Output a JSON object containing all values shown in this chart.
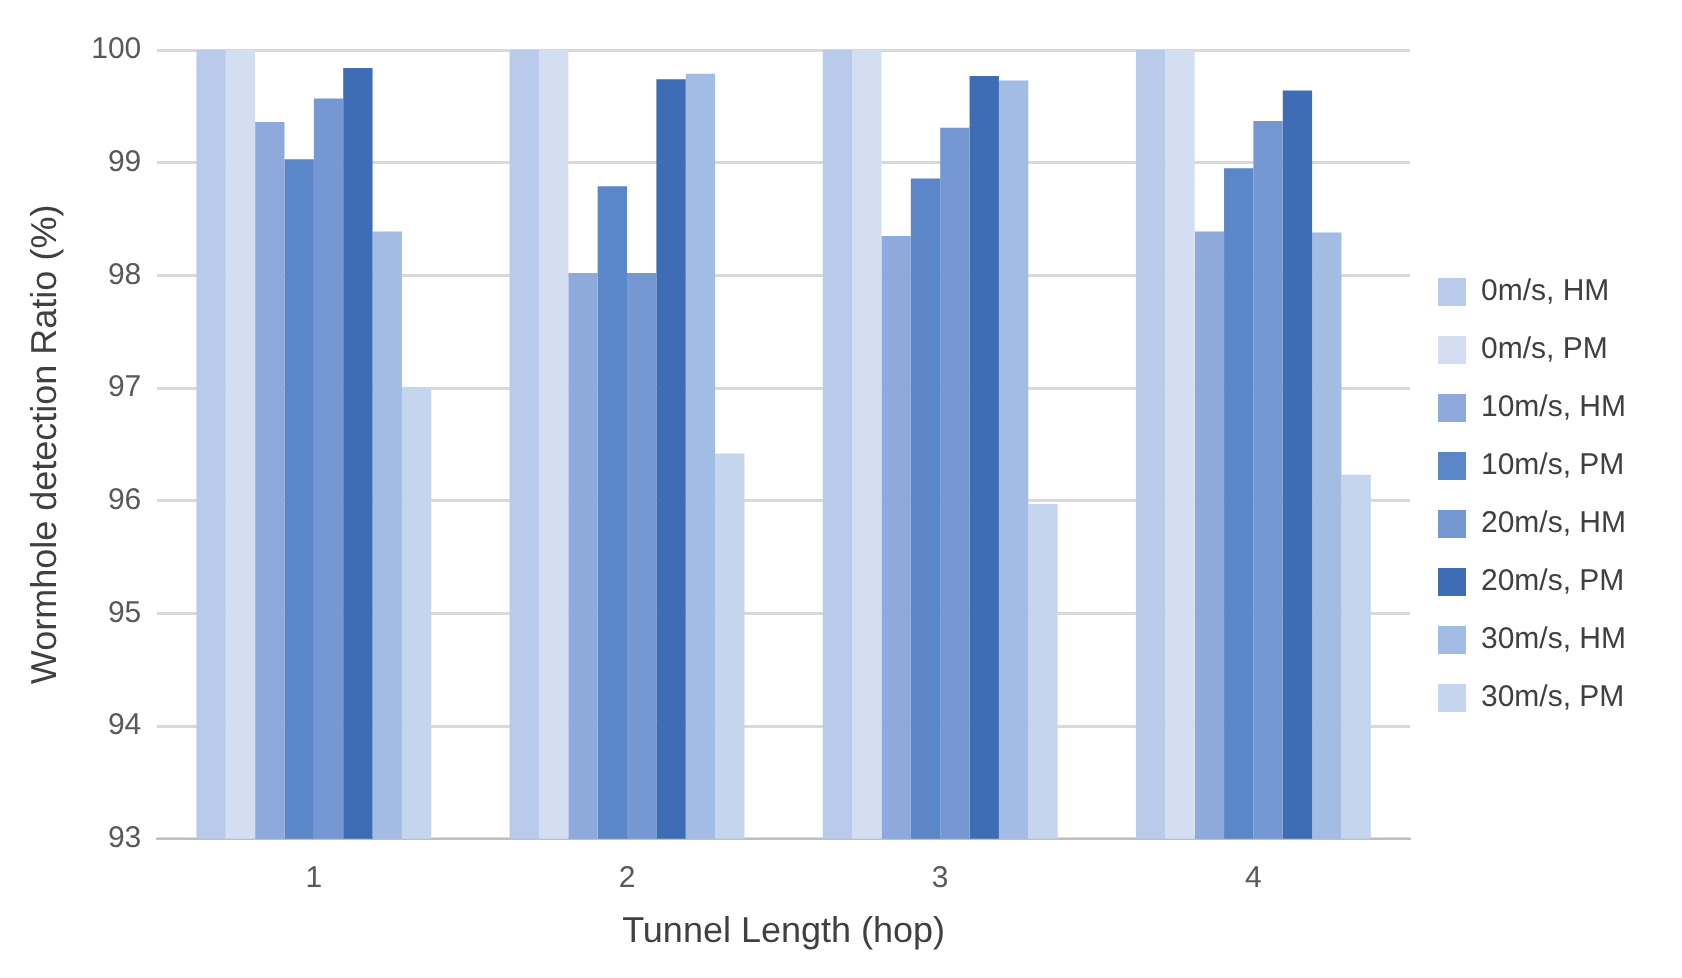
{
  "chart_data": {
    "type": "bar",
    "xlabel": "Tunnel Length (hop)",
    "ylabel": "Wormhole detection Ratio (%)",
    "categories": [
      "1",
      "2",
      "3",
      "4"
    ],
    "series": [
      {
        "name": "0m/s, HM",
        "color": "#b9cbea",
        "values": [
          100,
          100,
          100,
          100
        ]
      },
      {
        "name": "0m/s, PM",
        "color": "#d3def2",
        "values": [
          100,
          100,
          100,
          100
        ]
      },
      {
        "name": "10m/s, HM",
        "color": "#8eaadc",
        "values": [
          99.36,
          98.02,
          98.35,
          98.39
        ]
      },
      {
        "name": "10m/s, PM",
        "color": "#5b86c8",
        "values": [
          99.03,
          98.79,
          98.86,
          98.95
        ]
      },
      {
        "name": "20m/s, HM",
        "color": "#7598d2",
        "values": [
          99.57,
          98.02,
          99.31,
          99.37
        ]
      },
      {
        "name": "20m/s, PM",
        "color": "#3f6db5",
        "values": [
          99.84,
          99.74,
          99.77,
          99.64
        ]
      },
      {
        "name": "30m/s, HM",
        "color": "#a3bce4",
        "values": [
          98.39,
          99.79,
          99.73,
          98.38
        ]
      },
      {
        "name": "30m/s, PM",
        "color": "#c6d5ee",
        "values": [
          97.01,
          96.42,
          95.97,
          96.23
        ]
      }
    ],
    "ylim": [
      93,
      100
    ],
    "yticks": [
      93,
      94,
      95,
      96,
      97,
      98,
      99,
      100
    ],
    "grid": "y",
    "legend": "right"
  }
}
